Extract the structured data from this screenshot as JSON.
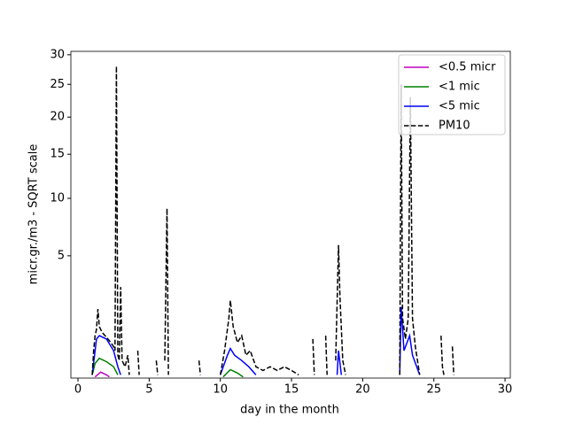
{
  "chart_data": {
    "type": "line",
    "xlabel": "day in the month",
    "ylabel": "micr.gr./m3 - SQRT scale",
    "yscale": "sqrt",
    "xlim": [
      -0.5,
      30.37
    ],
    "ylim": [
      0.07,
      30.6
    ],
    "xticks": [
      0,
      5,
      10,
      15,
      20,
      25,
      30
    ],
    "yticks": [
      5,
      10,
      15,
      20,
      25,
      30
    ],
    "legend": "upper right",
    "series": [
      {
        "name": "<0.5 micr",
        "color": "#bf00bf",
        "dash": false,
        "x": [
          1.2,
          1.6,
          2.0,
          2.2
        ],
        "values": [
          0.08,
          0.13,
          0.1,
          0.08
        ]
      },
      {
        "name": "<1 mic",
        "color": "#008000",
        "dash": false,
        "x": [
          1.0,
          1.2,
          1.5,
          2.0,
          2.5,
          2.8,
          6.0,
          10.2,
          10.7,
          11.2,
          11.6
        ],
        "values": [
          0.1,
          0.25,
          0.34,
          0.28,
          0.2,
          0.1,
          null,
          0.08,
          0.16,
          0.12,
          0.08
        ]
      },
      {
        "name": "<5 mic",
        "color": "#0000ff",
        "dash": false,
        "x": [
          1.0,
          1.3,
          1.5,
          2.0,
          2.5,
          2.8,
          3.0,
          6.0,
          10.0,
          10.5,
          10.7,
          11.0,
          11.5,
          12.0,
          12.5,
          15.0,
          18.2,
          18.3,
          18.5,
          20.0,
          22.6,
          22.7,
          22.9,
          23.3,
          23.5,
          24.0
        ],
        "values": [
          0.1,
          0.8,
          0.9,
          0.8,
          0.5,
          0.2,
          0.1,
          null,
          0.1,
          0.4,
          0.55,
          0.4,
          0.3,
          0.2,
          0.1,
          null,
          0.1,
          0.5,
          0.1,
          null,
          0.1,
          2.0,
          0.5,
          0.9,
          0.4,
          0.1
        ]
      },
      {
        "name": "PM10",
        "color": "#000000",
        "dash": true,
        "x": [
          1.0,
          1.1,
          1.2,
          1.3,
          1.4,
          1.5,
          1.7,
          1.9,
          2.1,
          2.3,
          2.5,
          2.6,
          2.7,
          2.8,
          2.9,
          3.0,
          3.1,
          3.3,
          3.5,
          3.6,
          3.9,
          4.2,
          4.3,
          4.9,
          5.5,
          5.6,
          5.8,
          6.1,
          6.25,
          6.35,
          7.4,
          8.5,
          8.6,
          9.3,
          10.0,
          10.3,
          10.6,
          10.7,
          10.9,
          11.2,
          11.5,
          11.8,
          12.1,
          12.5,
          13.0,
          13.5,
          14.0,
          14.5,
          15.0,
          15.5,
          16.0,
          16.5,
          16.6,
          17.0,
          17.4,
          17.5,
          17.8,
          18.1,
          18.3,
          18.4,
          18.6,
          18.8,
          20.7,
          22.6,
          22.7,
          22.8,
          23.0,
          23.2,
          23.35,
          23.5,
          23.7,
          24.0,
          24.7,
          25.5,
          25.6,
          25.7,
          26.0,
          26.3,
          26.4
        ],
        "values": [
          0.1,
          0.5,
          0.9,
          1.1,
          1.9,
          1.2,
          1.0,
          0.9,
          0.8,
          0.7,
          0.6,
          0.5,
          28,
          0.4,
          0.3,
          3.0,
          0.3,
          0.2,
          0.4,
          0.1,
          null,
          0.5,
          0.1,
          null,
          0.3,
          0.1,
          null,
          0.3,
          9,
          0.1,
          null,
          0.3,
          0.1,
          null,
          0.1,
          0.5,
          1.5,
          2.3,
          1.2,
          0.7,
          0.9,
          0.4,
          0.5,
          0.2,
          0.15,
          0.2,
          0.15,
          0.2,
          0.15,
          0.1,
          null,
          0.8,
          0.1,
          null,
          0.9,
          0.1,
          null,
          0.3,
          5.8,
          2.5,
          0.3,
          0.1,
          null,
          0.1,
          25,
          1.5,
          0.8,
          1.5,
          23,
          1.5,
          0.6,
          0.1,
          null,
          0.9,
          0.2,
          0.1,
          null,
          0.6,
          0.1
        ]
      }
    ]
  }
}
